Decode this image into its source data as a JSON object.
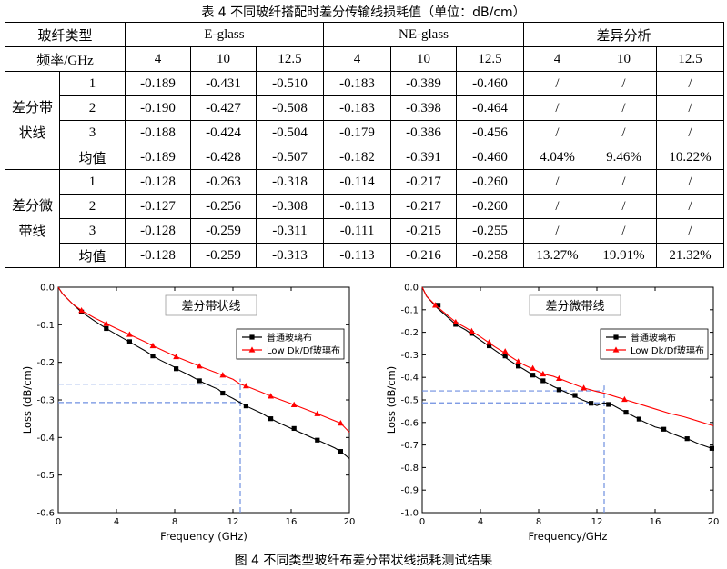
{
  "table_caption": "表 4  不同玻纤搭配时差分传输线损耗值（单位：dB/cm）",
  "table": {
    "header_row1": {
      "corner": "玻纤类型",
      "group1": "E-glass",
      "group2": "NE-glass",
      "group3": "差异分析"
    },
    "header_row2": {
      "corner": "频率/GHz",
      "freqs": [
        "4",
        "10",
        "12.5",
        "4",
        "10",
        "12.5",
        "4",
        "10",
        "12.5"
      ]
    },
    "blocks": [
      {
        "label": "差分带状线",
        "rows": [
          {
            "sub": "1",
            "cells": [
              "-0.189",
              "-0.431",
              "-0.510",
              "-0.183",
              "-0.389",
              "-0.460",
              "/",
              "/",
              "/"
            ]
          },
          {
            "sub": "2",
            "cells": [
              "-0.190",
              "-0.427",
              "-0.508",
              "-0.183",
              "-0.398",
              "-0.464",
              "/",
              "/",
              "/"
            ]
          },
          {
            "sub": "3",
            "cells": [
              "-0.188",
              "-0.424",
              "-0.504",
              "-0.179",
              "-0.386",
              "-0.456",
              "/",
              "/",
              "/"
            ]
          },
          {
            "sub": "均值",
            "cells": [
              "-0.189",
              "-0.428",
              "-0.507",
              "-0.182",
              "-0.391",
              "-0.460",
              "4.04%",
              "9.46%",
              "10.22%"
            ]
          }
        ]
      },
      {
        "label": "差分微带线",
        "rows": [
          {
            "sub": "1",
            "cells": [
              "-0.128",
              "-0.263",
              "-0.318",
              "-0.114",
              "-0.217",
              "-0.260",
              "/",
              "/",
              "/"
            ]
          },
          {
            "sub": "2",
            "cells": [
              "-0.127",
              "-0.256",
              "-0.308",
              "-0.113",
              "-0.217",
              "-0.260",
              "/",
              "/",
              "/"
            ]
          },
          {
            "sub": "3",
            "cells": [
              "-0.128",
              "-0.259",
              "-0.311",
              "-0.111",
              "-0.215",
              "-0.255",
              "/",
              "/",
              "/"
            ]
          },
          {
            "sub": "均值",
            "cells": [
              "-0.128",
              "-0.259",
              "-0.313",
              "-0.113",
              "-0.216",
              "-0.258",
              "13.27%",
              "19.91%",
              "21.32%"
            ]
          }
        ]
      }
    ]
  },
  "chart_data": [
    {
      "type": "line",
      "title": "差分带状线",
      "xlabel": "Frequency (GHz)",
      "ylabel": "Loss (dB/cm)",
      "xlim": [
        0,
        20
      ],
      "ylim": [
        -0.6,
        0.0
      ],
      "xticks": [
        0,
        4,
        8,
        12,
        16,
        20
      ],
      "xtick_labels": [
        "0",
        "4",
        "8",
        "12",
        "16",
        "20"
      ],
      "yticks": [
        0.0,
        -0.1,
        -0.2,
        -0.3,
        -0.4,
        -0.5,
        -0.6
      ],
      "ytick_labels": [
        "0.0",
        "-0.1",
        "-0.2",
        "-0.3",
        "-0.4",
        "-0.5",
        "-0.6"
      ],
      "legend_position": "upper-right",
      "series": [
        {
          "name": "普通玻璃布",
          "color": "#000000",
          "marker": "square",
          "x": [
            0,
            0.3,
            1,
            1.6,
            2.5,
            3.3,
            4,
            5,
            6,
            6.5,
            7,
            8,
            8.1,
            9,
            9.7,
            10,
            11,
            11.3,
            12,
            12.5,
            13,
            14,
            14.6,
            15,
            16,
            17,
            17.8,
            18,
            19,
            19.4,
            20
          ],
          "y": [
            0,
            -0.018,
            -0.045,
            -0.066,
            -0.09,
            -0.11,
            -0.126,
            -0.148,
            -0.17,
            -0.183,
            -0.194,
            -0.213,
            -0.217,
            -0.234,
            -0.249,
            -0.255,
            -0.272,
            -0.282,
            -0.296,
            -0.307,
            -0.318,
            -0.336,
            -0.35,
            -0.358,
            -0.376,
            -0.393,
            -0.407,
            -0.41,
            -0.428,
            -0.437,
            -0.456
          ],
          "marker_x": [
            1.6,
            3.3,
            4.9,
            6.5,
            8.1,
            9.7,
            11.3,
            12.9,
            14.6,
            16.2,
            17.8,
            19.4
          ],
          "marker_y": [
            -0.066,
            -0.11,
            -0.145,
            -0.183,
            -0.217,
            -0.249,
            -0.282,
            -0.316,
            -0.35,
            -0.376,
            -0.407,
            -0.437
          ]
        },
        {
          "name": "Low Dk/Df玻璃布",
          "color": "#ff0000",
          "marker": "triangle",
          "x": [
            0,
            0.3,
            1,
            1.6,
            2.5,
            3.3,
            4,
            5,
            6,
            6.5,
            8,
            8.1,
            9.7,
            10,
            11.3,
            12,
            12.5,
            12.9,
            14,
            14.6,
            16,
            16.2,
            17.8,
            18,
            19.4,
            20
          ],
          "y": [
            0,
            -0.018,
            -0.045,
            -0.062,
            -0.082,
            -0.097,
            -0.11,
            -0.128,
            -0.146,
            -0.156,
            -0.183,
            -0.185,
            -0.21,
            -0.215,
            -0.234,
            -0.245,
            -0.258,
            -0.263,
            -0.28,
            -0.29,
            -0.31,
            -0.313,
            -0.337,
            -0.34,
            -0.362,
            -0.386
          ],
          "marker_x": [
            1.6,
            3.3,
            4.9,
            6.5,
            8.1,
            9.7,
            11.3,
            12.9,
            14.6,
            16.2,
            17.8,
            19.4
          ],
          "marker_y": [
            -0.062,
            -0.097,
            -0.126,
            -0.156,
            -0.185,
            -0.21,
            -0.234,
            -0.263,
            -0.29,
            -0.313,
            -0.337,
            -0.362
          ]
        }
      ],
      "reference_lines": {
        "x": 12.5,
        "y": [
          -0.258,
          -0.307
        ],
        "color": "#6f8fe0"
      }
    },
    {
      "type": "line",
      "title": "差分微带线",
      "xlabel": "Frequency/GHz",
      "ylabel": "Loss (dB/cm)",
      "xlim": [
        0,
        20
      ],
      "ylim": [
        -1.0,
        0.0
      ],
      "xticks": [
        0,
        4,
        8,
        12,
        16,
        20
      ],
      "xtick_labels": [
        "0",
        "4",
        "8",
        "12",
        "16",
        "20"
      ],
      "yticks": [
        0.0,
        -0.1,
        -0.2,
        -0.3,
        -0.4,
        -0.5,
        -0.6,
        -0.7,
        -0.8,
        -0.9,
        -1.0
      ],
      "ytick_labels": [
        "0.0",
        "-0.1",
        "-0.2",
        "-0.3",
        "-0.4",
        "-0.5",
        "-0.6",
        "-0.7",
        "-0.8",
        "-0.9",
        "-1.0"
      ],
      "legend_position": "upper-right",
      "series": [
        {
          "name": "普通玻璃布",
          "color": "#000000",
          "marker": "square",
          "x": [
            0,
            0.3,
            1,
            2.3,
            3,
            4,
            5,
            6,
            6.6,
            7,
            8,
            8.3,
            9,
            10,
            11,
            11.6,
            12,
            12.5,
            13,
            14,
            14.9,
            15,
            16,
            16.6,
            17,
            18,
            18.2,
            19,
            19.9,
            20
          ],
          "y": [
            0,
            -0.04,
            -0.09,
            -0.165,
            -0.19,
            -0.235,
            -0.28,
            -0.325,
            -0.35,
            -0.365,
            -0.405,
            -0.415,
            -0.44,
            -0.47,
            -0.5,
            -0.515,
            -0.525,
            -0.513,
            -0.52,
            -0.555,
            -0.585,
            -0.59,
            -0.62,
            -0.63,
            -0.645,
            -0.67,
            -0.672,
            -0.695,
            -0.715,
            -0.72
          ],
          "marker_x": [
            1.1,
            2.3,
            3.4,
            4.6,
            5.7,
            6.6,
            7.6,
            8.3,
            9.4,
            10.5,
            11.6,
            12.8,
            14.0,
            14.9,
            16.6,
            18.2,
            19.9
          ],
          "marker_y": [
            -0.08,
            -0.165,
            -0.205,
            -0.26,
            -0.305,
            -0.35,
            -0.39,
            -0.415,
            -0.455,
            -0.48,
            -0.515,
            -0.52,
            -0.555,
            -0.585,
            -0.63,
            -0.672,
            -0.715
          ]
        },
        {
          "name": "Low Dk/Df玻璃布",
          "color": "#ff0000",
          "marker": "triangle",
          "x": [
            0,
            0.3,
            1,
            2.3,
            3,
            4,
            5,
            6,
            6.6,
            7,
            8,
            8.3,
            9,
            10,
            11,
            12,
            12.5,
            13,
            14,
            15,
            16,
            17,
            18,
            19,
            20
          ],
          "y": [
            0,
            -0.04,
            -0.085,
            -0.155,
            -0.18,
            -0.22,
            -0.265,
            -0.305,
            -0.33,
            -0.345,
            -0.375,
            -0.385,
            -0.395,
            -0.42,
            -0.445,
            -0.463,
            -0.47,
            -0.48,
            -0.5,
            -0.52,
            -0.54,
            -0.56,
            -0.575,
            -0.595,
            -0.615
          ],
          "marker_x": [
            0.9,
            2.3,
            3.4,
            4.6,
            5.7,
            6.6,
            7.6,
            8.3,
            9.4,
            11.1,
            13.9
          ],
          "marker_y": [
            -0.08,
            -0.155,
            -0.195,
            -0.245,
            -0.285,
            -0.33,
            -0.36,
            -0.385,
            -0.405,
            -0.447,
            -0.498
          ]
        }
      ],
      "reference_lines": {
        "x": 12.5,
        "y": [
          -0.46,
          -0.513
        ],
        "color": "#6f8fe0"
      }
    }
  ],
  "figure_caption": "图 4  不同类型玻纤布差分带状线损耗测试结果"
}
